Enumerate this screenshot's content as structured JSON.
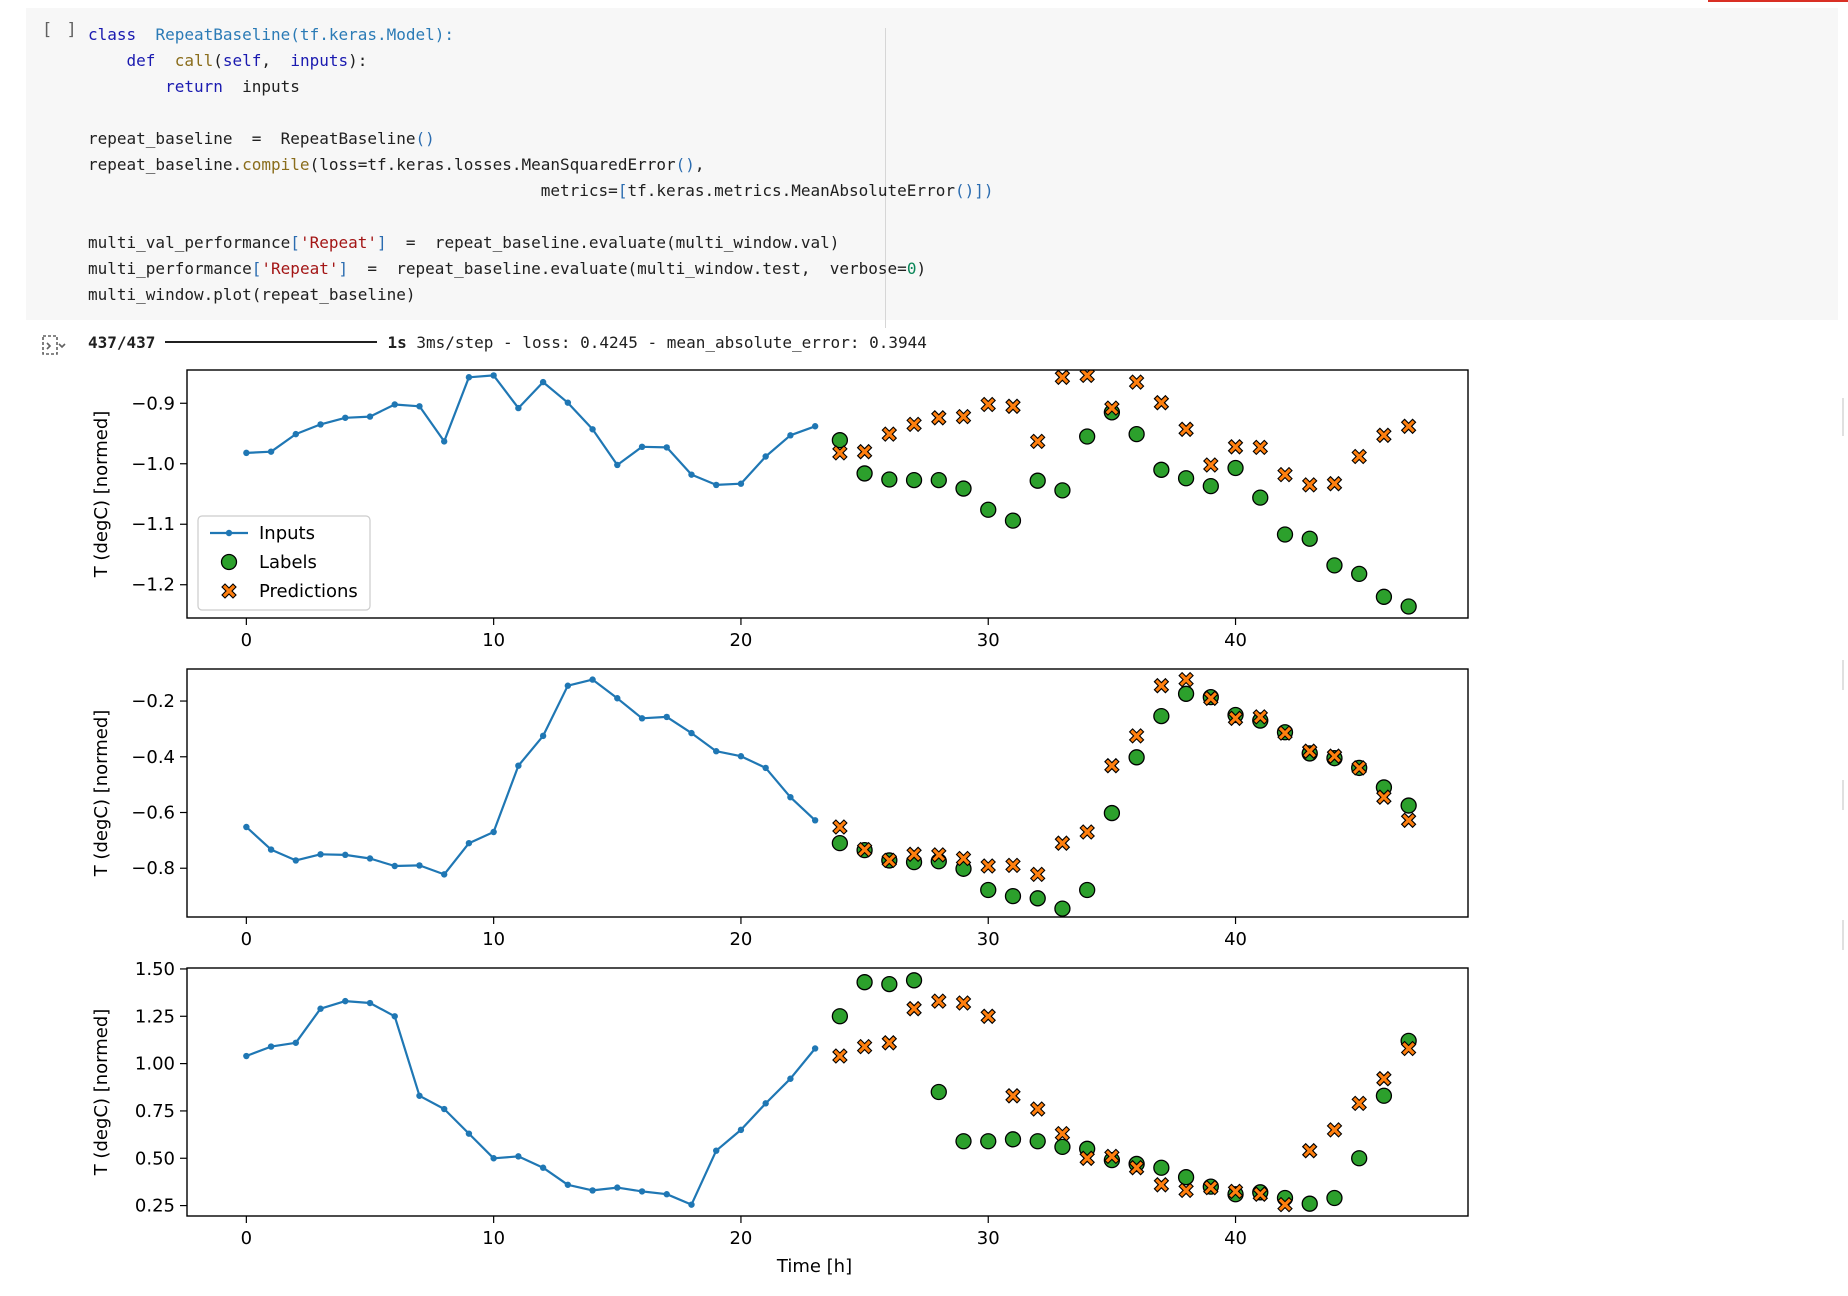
{
  "cell": {
    "run_indicator": "[ ]",
    "code_lines": [
      [
        [
          "class",
          "kw"
        ],
        [
          "  ",
          ""
        ],
        [
          "RepeatBaseline",
          "cls"
        ],
        [
          "(tf.keras.Model):",
          "cls"
        ]
      ],
      [
        [
          "    ",
          ""
        ],
        [
          "def",
          "kw"
        ],
        [
          "  ",
          ""
        ],
        [
          "call",
          "fn"
        ],
        [
          "(",
          ""
        ],
        [
          "self",
          "self"
        ],
        [
          ",  ",
          ""
        ],
        [
          "inputs",
          "self"
        ],
        [
          "):",
          ""
        ]
      ],
      [
        [
          "        ",
          ""
        ],
        [
          "return",
          "kw"
        ],
        [
          "  inputs",
          ""
        ]
      ],
      [
        [
          "",
          ""
        ]
      ],
      [
        [
          "repeat_baseline  =  RepeatBaseline",
          ""
        ],
        [
          "()",
          "br"
        ]
      ],
      [
        [
          "repeat_baseline.",
          ""
        ],
        [
          "compile",
          "fn"
        ],
        [
          "(loss=tf.keras.losses.MeanSquaredError",
          ""
        ],
        [
          "()",
          "br"
        ],
        [
          ",",
          ""
        ]
      ],
      [
        [
          "                                               metrics=",
          ""
        ],
        [
          "[",
          "br"
        ],
        [
          "tf.keras.metrics.MeanAbsoluteError",
          ""
        ],
        [
          "()",
          "br"
        ],
        [
          "])",
          "br"
        ]
      ],
      [
        [
          "",
          ""
        ]
      ],
      [
        [
          "multi_val_performance",
          ""
        ],
        [
          "[",
          "br"
        ],
        [
          "'Repeat'",
          "str"
        ],
        [
          "]",
          "br"
        ],
        [
          "  =  repeat_baseline.evaluate(multi_window.val)",
          ""
        ]
      ],
      [
        [
          "multi_performance",
          ""
        ],
        [
          "[",
          "br"
        ],
        [
          "'Repeat'",
          "str"
        ],
        [
          "]",
          "br"
        ],
        [
          "  =  repeat_baseline.evaluate(multi_window.test,  verbose=",
          ""
        ],
        [
          "0",
          "num"
        ],
        [
          ")",
          ""
        ]
      ],
      [
        [
          "multi_window.plot(repeat_baseline)",
          ""
        ]
      ]
    ]
  },
  "output": {
    "progress": "437/437",
    "progress_fraction": 1.0,
    "time": "1s",
    "rest": "3ms/step - loss: 0.4245 - mean_absolute_error: 0.3944"
  },
  "colors": {
    "inputs": "#1f77b4",
    "labels": "#2ca02c",
    "predictions": "#ff7f0e",
    "axes": "#000000"
  },
  "chart_data": [
    {
      "type": "line",
      "ylabel": "T (degC) [normed]",
      "xlabel": "",
      "xlim": [
        -2.4,
        49.4
      ],
      "ylim": [
        -1.255,
        -0.845
      ],
      "xticks": [
        0,
        10,
        20,
        30,
        40
      ],
      "yticks": [
        -1.2,
        -1.1,
        -1.0,
        -0.9
      ],
      "ytick_labels": [
        "−1.2",
        "−1.1",
        "−1.0",
        "−0.9"
      ],
      "legend": {
        "position": "lower-left",
        "entries": [
          "Inputs",
          "Labels",
          "Predictions"
        ]
      },
      "series": [
        {
          "name": "Inputs",
          "kind": "line",
          "x": [
            0,
            1,
            2,
            3,
            4,
            5,
            6,
            7,
            8,
            9,
            10,
            11,
            12,
            13,
            14,
            15,
            16,
            17,
            18,
            19,
            20,
            21,
            22,
            23
          ],
          "y": [
            -0.982,
            -0.98,
            -0.951,
            -0.935,
            -0.924,
            -0.922,
            -0.902,
            -0.905,
            -0.963,
            -0.857,
            -0.854,
            -0.908,
            -0.865,
            -0.899,
            -0.943,
            -1.002,
            -0.972,
            -0.973,
            -1.018,
            -1.035,
            -1.033,
            -0.988,
            -0.953,
            -0.938
          ]
        },
        {
          "name": "Labels",
          "kind": "scatter",
          "x": [
            24,
            25,
            26,
            27,
            28,
            29,
            30,
            31,
            32,
            33,
            34,
            35,
            36,
            37,
            38,
            39,
            40,
            41,
            42,
            43,
            44,
            45,
            46,
            47
          ],
          "y": [
            -0.961,
            -1.016,
            -1.026,
            -1.027,
            -1.027,
            -1.041,
            -1.076,
            -1.094,
            -1.028,
            -1.044,
            -0.955,
            -0.915,
            -0.951,
            -1.01,
            -1.024,
            -1.037,
            -1.007,
            -1.056,
            -1.117,
            -1.124,
            -1.168,
            -1.182,
            -1.22,
            -1.236
          ]
        },
        {
          "name": "Predictions",
          "kind": "marker-x",
          "x": [
            24,
            25,
            26,
            27,
            28,
            29,
            30,
            31,
            32,
            33,
            34,
            35,
            36,
            37,
            38,
            39,
            40,
            41,
            42,
            43,
            44,
            45,
            46,
            47
          ],
          "y": [
            -0.982,
            -0.98,
            -0.951,
            -0.935,
            -0.924,
            -0.922,
            -0.902,
            -0.905,
            -0.963,
            -0.857,
            -0.854,
            -0.908,
            -0.865,
            -0.899,
            -0.943,
            -1.002,
            -0.972,
            -0.973,
            -1.018,
            -1.035,
            -1.033,
            -0.988,
            -0.953,
            -0.938
          ]
        }
      ]
    },
    {
      "type": "line",
      "ylabel": "T (degC) [normed]",
      "xlabel": "",
      "xlim": [
        -2.4,
        49.4
      ],
      "ylim": [
        -0.975,
        -0.085
      ],
      "xticks": [
        0,
        10,
        20,
        30,
        40
      ],
      "yticks": [
        -0.8,
        -0.6,
        -0.4,
        -0.2
      ],
      "ytick_labels": [
        "−0.8",
        "−0.6",
        "−0.4",
        "−0.2"
      ],
      "series": [
        {
          "name": "Inputs",
          "kind": "line",
          "x": [
            0,
            1,
            2,
            3,
            4,
            5,
            6,
            7,
            8,
            9,
            10,
            11,
            12,
            13,
            14,
            15,
            16,
            17,
            18,
            19,
            20,
            21,
            22,
            23
          ],
          "y": [
            -0.652,
            -0.733,
            -0.772,
            -0.75,
            -0.752,
            -0.765,
            -0.792,
            -0.79,
            -0.822,
            -0.71,
            -0.67,
            -0.432,
            -0.325,
            -0.145,
            -0.123,
            -0.19,
            -0.262,
            -0.257,
            -0.315,
            -0.38,
            -0.398,
            -0.44,
            -0.545,
            -0.628
          ]
        },
        {
          "name": "Labels",
          "kind": "scatter",
          "x": [
            24,
            25,
            26,
            27,
            28,
            29,
            30,
            31,
            32,
            33,
            34,
            35,
            36,
            37,
            38,
            39,
            40,
            41,
            42,
            43,
            44,
            45,
            46,
            47
          ],
          "y": [
            -0.71,
            -0.735,
            -0.772,
            -0.778,
            -0.775,
            -0.802,
            -0.878,
            -0.9,
            -0.908,
            -0.945,
            -0.878,
            -0.602,
            -0.402,
            -0.254,
            -0.174,
            -0.186,
            -0.25,
            -0.27,
            -0.312,
            -0.388,
            -0.405,
            -0.44,
            -0.51,
            -0.575
          ]
        },
        {
          "name": "Predictions",
          "kind": "marker-x",
          "x": [
            24,
            25,
            26,
            27,
            28,
            29,
            30,
            31,
            32,
            33,
            34,
            35,
            36,
            37,
            38,
            39,
            40,
            41,
            42,
            43,
            44,
            45,
            46,
            47
          ],
          "y": [
            -0.652,
            -0.733,
            -0.772,
            -0.75,
            -0.752,
            -0.765,
            -0.792,
            -0.79,
            -0.822,
            -0.71,
            -0.67,
            -0.432,
            -0.325,
            -0.145,
            -0.123,
            -0.19,
            -0.262,
            -0.257,
            -0.315,
            -0.38,
            -0.398,
            -0.44,
            -0.545,
            -0.628
          ]
        }
      ]
    },
    {
      "type": "line",
      "ylabel": "T (degC) [normed]",
      "xlabel": "Time [h]",
      "xlim": [
        -2.4,
        49.4
      ],
      "ylim": [
        0.195,
        1.505
      ],
      "xticks": [
        0,
        10,
        20,
        30,
        40
      ],
      "yticks": [
        0.25,
        0.5,
        0.75,
        1.0,
        1.25,
        1.5
      ],
      "ytick_labels": [
        "0.25",
        "0.50",
        "0.75",
        "1.00",
        "1.25",
        "1.50"
      ],
      "series": [
        {
          "name": "Inputs",
          "kind": "line",
          "x": [
            0,
            1,
            2,
            3,
            4,
            5,
            6,
            7,
            8,
            9,
            10,
            11,
            12,
            13,
            14,
            15,
            16,
            17,
            18,
            19,
            20,
            21,
            22,
            23
          ],
          "y": [
            1.04,
            1.09,
            1.11,
            1.29,
            1.33,
            1.32,
            1.25,
            0.83,
            0.76,
            0.63,
            0.5,
            0.51,
            0.45,
            0.36,
            0.33,
            0.345,
            0.325,
            0.31,
            0.255,
            0.54,
            0.65,
            0.79,
            0.92,
            1.08
          ]
        },
        {
          "name": "Labels",
          "kind": "scatter",
          "x": [
            24,
            25,
            26,
            27,
            28,
            29,
            30,
            31,
            32,
            33,
            34,
            35,
            36,
            37,
            38,
            39,
            40,
            41,
            42,
            43,
            44,
            45,
            46,
            47
          ],
          "y": [
            1.25,
            1.43,
            1.42,
            1.44,
            0.85,
            0.59,
            0.59,
            0.6,
            0.59,
            0.56,
            0.55,
            0.49,
            0.47,
            0.45,
            0.4,
            0.35,
            0.31,
            0.32,
            0.29,
            0.26,
            0.29,
            0.5,
            0.83,
            1.12
          ]
        },
        {
          "name": "Predictions",
          "kind": "marker-x",
          "x": [
            24,
            25,
            26,
            27,
            28,
            29,
            30,
            31,
            32,
            33,
            34,
            35,
            36,
            37,
            38,
            39,
            40,
            41,
            42,
            43,
            44,
            45,
            46,
            47
          ],
          "y": [
            1.04,
            1.09,
            1.11,
            1.29,
            1.33,
            1.32,
            1.25,
            0.83,
            0.76,
            0.63,
            0.5,
            0.51,
            0.45,
            0.36,
            0.33,
            0.345,
            0.325,
            0.31,
            0.255,
            0.54,
            0.65,
            0.79,
            0.92,
            1.08
          ]
        }
      ]
    }
  ]
}
